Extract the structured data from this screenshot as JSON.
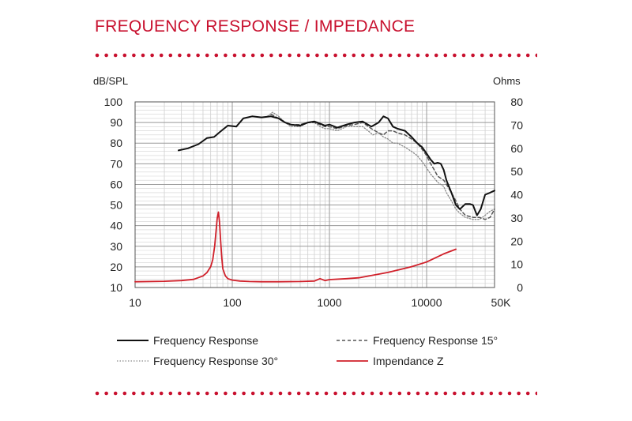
{
  "header": {
    "title": "FREQUENCY RESPONSE / IMPEDANCE"
  },
  "chart_data": {
    "type": "line",
    "xscale": "log",
    "xlim": [
      10,
      50000
    ],
    "x_ticks": [
      {
        "value": 10,
        "label": "10"
      },
      {
        "value": 100,
        "label": "100"
      },
      {
        "value": 1000,
        "label": "1000"
      },
      {
        "value": 10000,
        "label": "10000"
      },
      {
        "value": 50000,
        "label": "50K"
      }
    ],
    "y_left": {
      "label": "dB/SPL",
      "lim": [
        10,
        100
      ],
      "ticks": [
        "10",
        "20",
        "30",
        "40",
        "50",
        "60",
        "70",
        "80",
        "90",
        "100"
      ]
    },
    "y_right": {
      "label": "Ohms",
      "lim": [
        0,
        80
      ],
      "ticks": [
        "0",
        "10",
        "20",
        "30",
        "40",
        "50",
        "60",
        "70",
        "80"
      ]
    },
    "grid": true,
    "legend_position": "bottom",
    "colors": {
      "accent": "#c8102e",
      "freq": "#111111",
      "freq15": "#555555",
      "freq30": "#888888",
      "impedance": "#d0202a"
    },
    "series": [
      {
        "name": "Frequency Response",
        "axis": "left",
        "style": "solid",
        "x": [
          28,
          35,
          45,
          55,
          65,
          75,
          90,
          110,
          130,
          160,
          200,
          250,
          300,
          350,
          400,
          500,
          600,
          700,
          800,
          900,
          1000,
          1200,
          1500,
          1800,
          2200,
          2700,
          3200,
          3600,
          4000,
          4500,
          5000,
          6000,
          7000,
          8000,
          9000,
          10000,
          11000,
          12000,
          13000,
          14000,
          15000,
          16000,
          18000,
          20000,
          22000,
          25000,
          28000,
          30000,
          33000,
          36000,
          40000,
          45000,
          50000
        ],
        "y": [
          76.5,
          77.5,
          79.5,
          82.5,
          83,
          85.5,
          88.5,
          88,
          92,
          93,
          92.5,
          93,
          92,
          90,
          89,
          88.5,
          90,
          90.5,
          89.5,
          88.5,
          89,
          87.5,
          89,
          90,
          90.5,
          88,
          90,
          93,
          92,
          88,
          87,
          86,
          83,
          80,
          78,
          75,
          72,
          70,
          70.5,
          70,
          67,
          62,
          56,
          50,
          48,
          50.5,
          50.5,
          50,
          45,
          48,
          55,
          56,
          57
        ]
      },
      {
        "name": "Frequency Response 15°",
        "axis": "left",
        "style": "dashed",
        "x": [
          250,
          300,
          350,
          400,
          500,
          600,
          700,
          800,
          900,
          1000,
          1200,
          1500,
          1800,
          2200,
          2700,
          3200,
          3600,
          4000,
          4500,
          5000,
          6000,
          7000,
          8000,
          9000,
          10000,
          11000,
          12000,
          13000,
          15000,
          16000,
          18000,
          20000,
          22000,
          25000,
          30000,
          35000,
          40000,
          45000,
          50000
        ],
        "y": [
          94,
          92,
          90,
          89,
          89,
          90,
          90,
          89,
          88,
          88,
          87,
          88.5,
          89,
          90,
          87,
          85,
          84,
          86,
          86,
          85,
          84,
          82,
          80,
          77,
          74,
          70,
          67,
          64,
          62,
          60,
          56,
          52,
          48,
          45,
          44,
          44,
          43,
          44,
          48
        ]
      },
      {
        "name": "Frequency Response 30°",
        "axis": "left",
        "style": "dotted",
        "x": [
          230,
          260,
          300,
          350,
          400,
          500,
          600,
          700,
          800,
          900,
          1000,
          1200,
          1500,
          1800,
          2200,
          2500,
          2800,
          3200,
          3600,
          4000,
          4500,
          5000,
          6000,
          7000,
          8000,
          9000,
          10000,
          11000,
          12000,
          13000,
          15000,
          16000,
          18000,
          20000,
          22000,
          25000,
          30000,
          35000,
          40000,
          45000,
          50000
        ],
        "y": [
          93,
          95,
          93,
          90,
          88,
          88,
          90,
          90,
          88,
          87,
          87,
          86,
          88,
          88,
          88,
          86,
          84,
          85,
          83,
          82,
          80,
          80,
          78,
          76,
          74,
          71,
          68,
          65,
          63,
          61,
          59,
          56,
          52,
          48,
          46,
          44,
          43,
          43,
          45,
          47,
          48
        ]
      },
      {
        "name": "Impendance Z",
        "axis": "right",
        "style": "solid",
        "x": [
          10,
          20,
          30,
          40,
          50,
          55,
          60,
          63,
          66,
          68,
          70,
          72,
          74,
          76,
          78,
          80,
          85,
          90,
          100,
          120,
          150,
          200,
          300,
          500,
          700,
          800,
          900,
          1000,
          1500,
          2000,
          3000,
          4000,
          5000,
          7000,
          10000,
          15000,
          20000
        ],
        "y": [
          2.5,
          2.7,
          3.0,
          3.5,
          5.0,
          6.5,
          9.0,
          12.0,
          18.0,
          24.0,
          30.0,
          32.5,
          28.0,
          20.0,
          13.0,
          8.0,
          5.0,
          3.8,
          3.2,
          2.8,
          2.6,
          2.5,
          2.5,
          2.6,
          2.8,
          3.8,
          3.0,
          3.4,
          3.8,
          4.2,
          5.5,
          6.5,
          7.5,
          9.0,
          11.0,
          14.5,
          16.5
        ]
      }
    ]
  }
}
